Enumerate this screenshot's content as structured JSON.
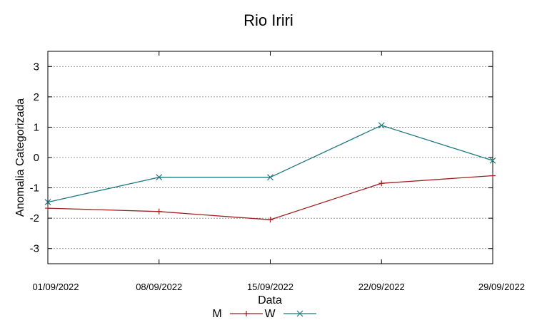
{
  "chart_data": {
    "type": "line",
    "title": "Rio Iriri",
    "xlabel": "Data",
    "ylabel": "Anomalia Categorizada",
    "categories": [
      "01/09/2022",
      "08/09/2022",
      "15/09/2022",
      "22/09/2022",
      "29/09/2022"
    ],
    "ylim": [
      -3.5,
      3.5
    ],
    "yticks": [
      "3",
      "2",
      "1",
      "0",
      "-1",
      "-2",
      "-3"
    ],
    "grid": true,
    "legend_position": "bottom-center",
    "series": [
      {
        "name": "M",
        "color": "#a02020",
        "marker": "plus",
        "values": [
          -1.67,
          -1.78,
          -2.05,
          -0.85,
          -0.6
        ]
      },
      {
        "name": "W",
        "color": "#207880",
        "marker": "cross",
        "values": [
          -1.47,
          -0.65,
          -0.65,
          1.06,
          -0.1
        ]
      }
    ]
  }
}
